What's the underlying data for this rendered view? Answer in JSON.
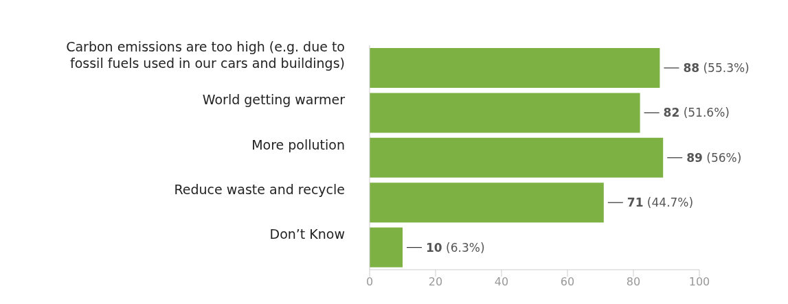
{
  "chart_data": {
    "type": "bar",
    "orientation": "horizontal",
    "categories": [
      "Carbon emissions are too high (e.g. due to fossil fuels used in our cars and buildings)",
      "World getting warmer",
      "More pollution",
      "Reduce waste and recycle",
      "Don’t Know"
    ],
    "values": [
      88,
      82,
      89,
      71,
      10
    ],
    "value_labels": [
      "88 (55.3%)",
      "82 (51.6%)",
      "89 (56%)",
      "71 (44.7%)",
      "10 (6.3%)"
    ],
    "color": "#7db144",
    "xlim": [
      0,
      100
    ],
    "xticks": [
      0,
      20,
      40,
      60,
      80,
      100
    ]
  }
}
